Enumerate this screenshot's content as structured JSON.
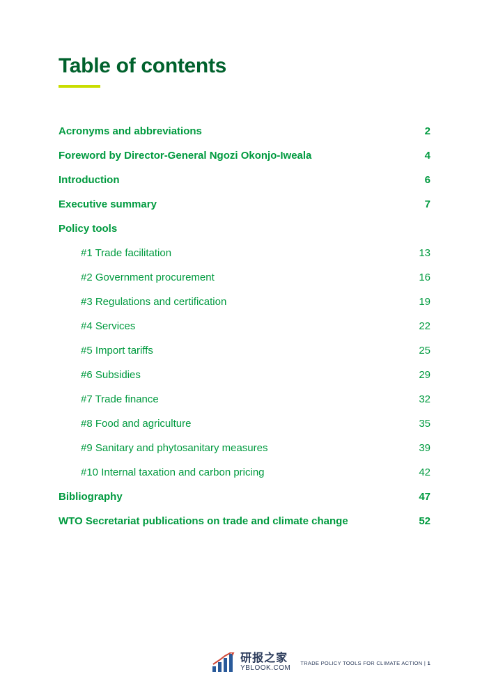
{
  "title": "Table of contents",
  "entries": [
    {
      "label": "Acronyms and abbreviations",
      "page": "2",
      "sub": false
    },
    {
      "label": "Foreword by Director-General Ngozi Okonjo-Iweala",
      "page": "4",
      "sub": false
    },
    {
      "label": "Introduction",
      "page": "6",
      "sub": false
    },
    {
      "label": "Executive summary",
      "page": "7",
      "sub": false
    },
    {
      "label": "Policy tools",
      "page": "",
      "sub": false
    },
    {
      "label": "#1 Trade facilitation",
      "page": "13",
      "sub": true
    },
    {
      "label": "#2 Government procurement",
      "page": "16",
      "sub": true
    },
    {
      "label": "#3 Regulations and certification",
      "page": "19",
      "sub": true
    },
    {
      "label": "#4 Services",
      "page": "22",
      "sub": true
    },
    {
      "label": "#5 Import tariffs",
      "page": "25",
      "sub": true
    },
    {
      "label": "#6 Subsidies",
      "page": "29",
      "sub": true
    },
    {
      "label": "#7 Trade finance",
      "page": "32",
      "sub": true
    },
    {
      "label": "#8 Food and agriculture",
      "page": "35",
      "sub": true
    },
    {
      "label": "#9 Sanitary and phytosanitary measures",
      "page": "39",
      "sub": true
    },
    {
      "label": "#10 Internal taxation and carbon pricing",
      "page": "42",
      "sub": true
    },
    {
      "label": "Bibliography",
      "page": "47",
      "sub": false
    },
    {
      "label": "WTO Secretariat publications on trade and climate change",
      "page": "52",
      "sub": false
    }
  ],
  "footer": {
    "logo_cn": "研报之家",
    "logo_en": "YBLOOK.COM",
    "caption_prefix": "TRADE POLICY TOOLS FOR CLIMATE ACTION | ",
    "caption_page": "1"
  },
  "colors": {
    "title": "#00612c",
    "accent": "#c9dd00",
    "link": "#009a3f",
    "footer_text": "#2a3a5a",
    "background": "#ffffff"
  },
  "typography": {
    "title_fontsize": 30,
    "entry_fontsize": 15,
    "footer_caption_fontsize": 7.5
  }
}
